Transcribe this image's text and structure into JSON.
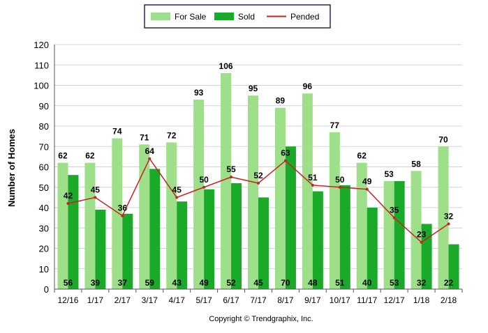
{
  "chart_data": {
    "type": "bar",
    "title": "",
    "xlabel": "",
    "ylabel": "Number of Homes",
    "ylim": [
      0,
      120
    ],
    "yticks": [
      0,
      10,
      20,
      30,
      40,
      50,
      60,
      70,
      80,
      90,
      100,
      110,
      120
    ],
    "grid": true,
    "legend_position": "top-center",
    "categories": [
      "12/16",
      "1/17",
      "2/17",
      "3/17",
      "4/17",
      "5/17",
      "6/17",
      "7/17",
      "8/17",
      "9/17",
      "10/17",
      "11/17",
      "12/17",
      "1/18",
      "2/18"
    ],
    "series": [
      {
        "name": "For Sale",
        "kind": "bar",
        "color": "#9ee08a",
        "values": [
          62,
          62,
          74,
          71,
          72,
          93,
          106,
          95,
          89,
          96,
          77,
          62,
          53,
          58,
          70
        ]
      },
      {
        "name": "Sold",
        "kind": "bar",
        "color": "#1aaa2a",
        "values": [
          56,
          39,
          37,
          59,
          43,
          49,
          52,
          45,
          70,
          48,
          51,
          40,
          53,
          32,
          22
        ]
      },
      {
        "name": "Pended",
        "kind": "line",
        "color": "#cc1f1f",
        "values": [
          42,
          45,
          36,
          64,
          45,
          50,
          55,
          52,
          63,
          51,
          50,
          49,
          35,
          23,
          32
        ]
      }
    ],
    "footer": "Copyright © Trendgraphix, Inc."
  }
}
